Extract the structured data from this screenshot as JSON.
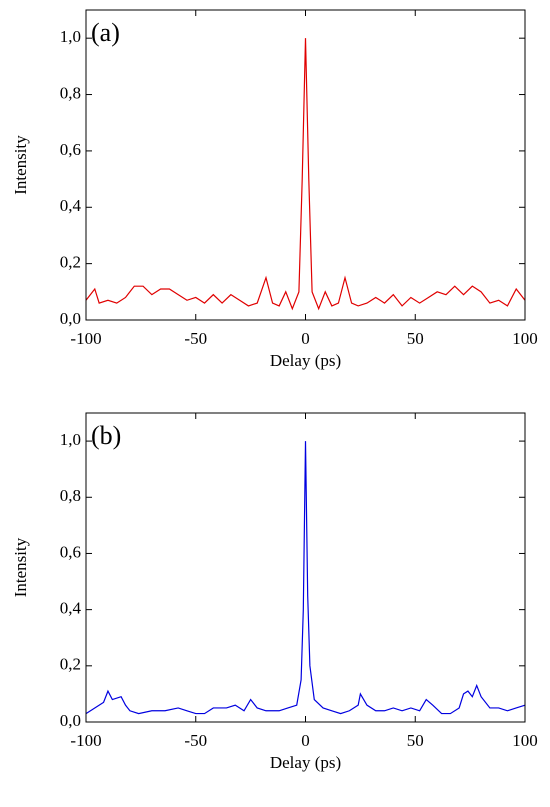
{
  "chart_data": [
    {
      "type": "line",
      "annotation": "(a)",
      "xlabel": "Delay (ps)",
      "ylabel": "Intensity",
      "xlim": [
        -100,
        100
      ],
      "xticks": [
        -100,
        -50,
        0,
        50,
        100
      ],
      "ylim": [
        0,
        1.1
      ],
      "yticks": [
        {
          "value": 0,
          "label": "0,0"
        },
        {
          "value": 0.2,
          "label": "0,2"
        },
        {
          "value": 0.4,
          "label": "0,4"
        },
        {
          "value": 0.6,
          "label": "0,6"
        },
        {
          "value": 0.8,
          "label": "0,8"
        },
        {
          "value": 1.0,
          "label": "1,0"
        }
      ],
      "series": [
        {
          "color": "#e00000",
          "x": [
            -100,
            -96,
            -94,
            -90,
            -86,
            -82,
            -78,
            -74,
            -70,
            -66,
            -62,
            -58,
            -54,
            -50,
            -46,
            -42,
            -38,
            -34,
            -30,
            -26,
            -22,
            -18,
            -15,
            -12,
            -9,
            -6,
            -3,
            -1.5,
            0,
            1.5,
            3,
            6,
            9,
            12,
            15,
            18,
            21,
            24,
            28,
            32,
            36,
            40,
            44,
            48,
            52,
            56,
            60,
            64,
            68,
            72,
            76,
            80,
            84,
            88,
            92,
            96,
            100
          ],
          "values": [
            0.07,
            0.11,
            0.06,
            0.07,
            0.06,
            0.08,
            0.12,
            0.12,
            0.09,
            0.11,
            0.11,
            0.09,
            0.07,
            0.08,
            0.06,
            0.09,
            0.06,
            0.09,
            0.07,
            0.05,
            0.06,
            0.15,
            0.06,
            0.05,
            0.1,
            0.04,
            0.1,
            0.5,
            1.0,
            0.5,
            0.1,
            0.04,
            0.1,
            0.05,
            0.06,
            0.15,
            0.06,
            0.05,
            0.06,
            0.08,
            0.06,
            0.09,
            0.05,
            0.08,
            0.06,
            0.08,
            0.1,
            0.09,
            0.12,
            0.09,
            0.12,
            0.1,
            0.06,
            0.07,
            0.05,
            0.11,
            0.07
          ]
        }
      ]
    },
    {
      "type": "line",
      "annotation": "(b)",
      "xlabel": "Delay (ps)",
      "ylabel": "Intensity",
      "xlim": [
        -100,
        100
      ],
      "xticks": [
        -100,
        -50,
        0,
        50,
        100
      ],
      "ylim": [
        0,
        1.1
      ],
      "yticks": [
        {
          "value": 0,
          "label": "0,0"
        },
        {
          "value": 0.2,
          "label": "0,2"
        },
        {
          "value": 0.4,
          "label": "0,4"
        },
        {
          "value": 0.6,
          "label": "0,6"
        },
        {
          "value": 0.8,
          "label": "0,8"
        },
        {
          "value": 1.0,
          "label": "1,0"
        }
      ],
      "series": [
        {
          "color": "#0000e0",
          "x": [
            -100,
            -96,
            -92,
            -90,
            -88,
            -84,
            -82,
            -80,
            -76,
            -70,
            -64,
            -58,
            -54,
            -50,
            -46,
            -42,
            -36,
            -32,
            -28,
            -25,
            -22,
            -18,
            -12,
            -8,
            -4,
            -2,
            -1,
            0,
            1,
            2,
            4,
            8,
            12,
            16,
            20,
            24,
            25,
            28,
            32,
            36,
            40,
            44,
            48,
            52,
            55,
            58,
            62,
            66,
            70,
            72,
            74,
            76,
            78,
            80,
            84,
            88,
            92,
            96,
            100
          ],
          "values": [
            0.03,
            0.05,
            0.07,
            0.11,
            0.08,
            0.09,
            0.06,
            0.04,
            0.03,
            0.04,
            0.04,
            0.05,
            0.04,
            0.03,
            0.03,
            0.05,
            0.05,
            0.06,
            0.04,
            0.08,
            0.05,
            0.04,
            0.04,
            0.05,
            0.06,
            0.15,
            0.4,
            1.0,
            0.45,
            0.2,
            0.08,
            0.05,
            0.04,
            0.03,
            0.04,
            0.06,
            0.1,
            0.06,
            0.04,
            0.04,
            0.05,
            0.04,
            0.05,
            0.04,
            0.08,
            0.06,
            0.03,
            0.03,
            0.05,
            0.1,
            0.11,
            0.09,
            0.13,
            0.09,
            0.05,
            0.05,
            0.04,
            0.05,
            0.06
          ]
        }
      ]
    }
  ]
}
